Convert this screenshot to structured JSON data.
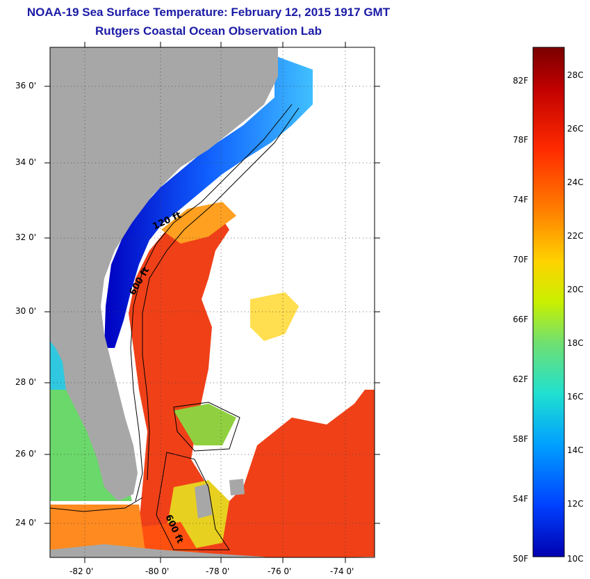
{
  "title": "NOAA-19 Sea Surface Temperature:  February 12, 2015 1917 GMT",
  "subtitle": "Rutgers Coastal Ocean Observation Lab",
  "map": {
    "lat_labels": [
      "36 0'",
      "34 0'",
      "32 0'",
      "30 0'",
      "28 0'",
      "26 0'",
      "24 0'"
    ],
    "lon_labels": [
      "-82 0'",
      "-80 0'",
      "-78 0'",
      "-76 0'",
      "-74 0'"
    ],
    "contour_labels": [
      "120 ft",
      "600 ft",
      "600 ft"
    ]
  },
  "colorbar": {
    "fahrenheit_labels": [
      "82F",
      "78F",
      "74F",
      "70F",
      "66F",
      "62F",
      "58F",
      "54F",
      "50F"
    ],
    "celsius_labels": [
      "28C",
      "26C",
      "24C",
      "22C",
      "20C",
      "18C",
      "16C",
      "14C",
      "12C",
      "10C"
    ],
    "colors": [
      "#7a0000",
      "#c00000",
      "#ff2a00",
      "#ff7f00",
      "#ffd200",
      "#c8f000",
      "#70e070",
      "#20e0d0",
      "#00a0ff",
      "#0040ff",
      "#0000b0"
    ]
  },
  "colors": {
    "land": "#a7a7a7",
    "title": "#1a1aa6"
  }
}
